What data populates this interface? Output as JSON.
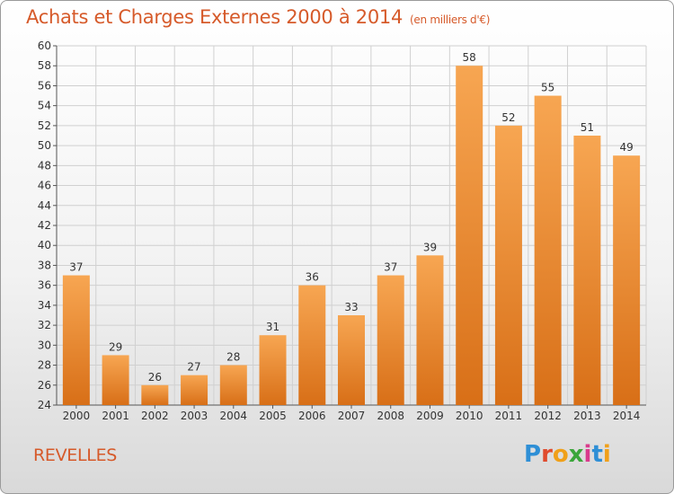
{
  "header": {
    "title": "Achats et Charges Externes 2000 à 2014",
    "unit": "(en milliers d'€)"
  },
  "footer": {
    "town": "REVELLES",
    "logo": {
      "letters": [
        "P",
        "r",
        "o",
        "x",
        "i",
        "t",
        "i"
      ],
      "colors": [
        "#2e8fd6",
        "#e04b2d",
        "#f0a019",
        "#3aa63a",
        "#d93b8c",
        "#2e8fd6",
        "#f0a019"
      ]
    }
  },
  "colors": {
    "bar_light": "#f7a652",
    "bar_dark": "#d86f17",
    "grid": "#d0d0d0",
    "title": "#d65a2a"
  },
  "chart_data": {
    "type": "bar",
    "title": "Achats et Charges Externes 2000 à 2014",
    "xlabel": "",
    "ylabel": "",
    "categories": [
      "2000",
      "2001",
      "2002",
      "2003",
      "2004",
      "2005",
      "2006",
      "2007",
      "2008",
      "2009",
      "2010",
      "2011",
      "2012",
      "2013",
      "2014"
    ],
    "values": [
      37,
      29,
      26,
      27,
      28,
      31,
      36,
      33,
      37,
      39,
      58,
      52,
      55,
      51,
      49
    ],
    "ylim": [
      24,
      60
    ],
    "yticks": [
      24,
      26,
      28,
      30,
      32,
      34,
      36,
      38,
      40,
      42,
      44,
      46,
      48,
      50,
      52,
      54,
      56,
      58,
      60
    ],
    "grid": true,
    "data_labels": true
  }
}
